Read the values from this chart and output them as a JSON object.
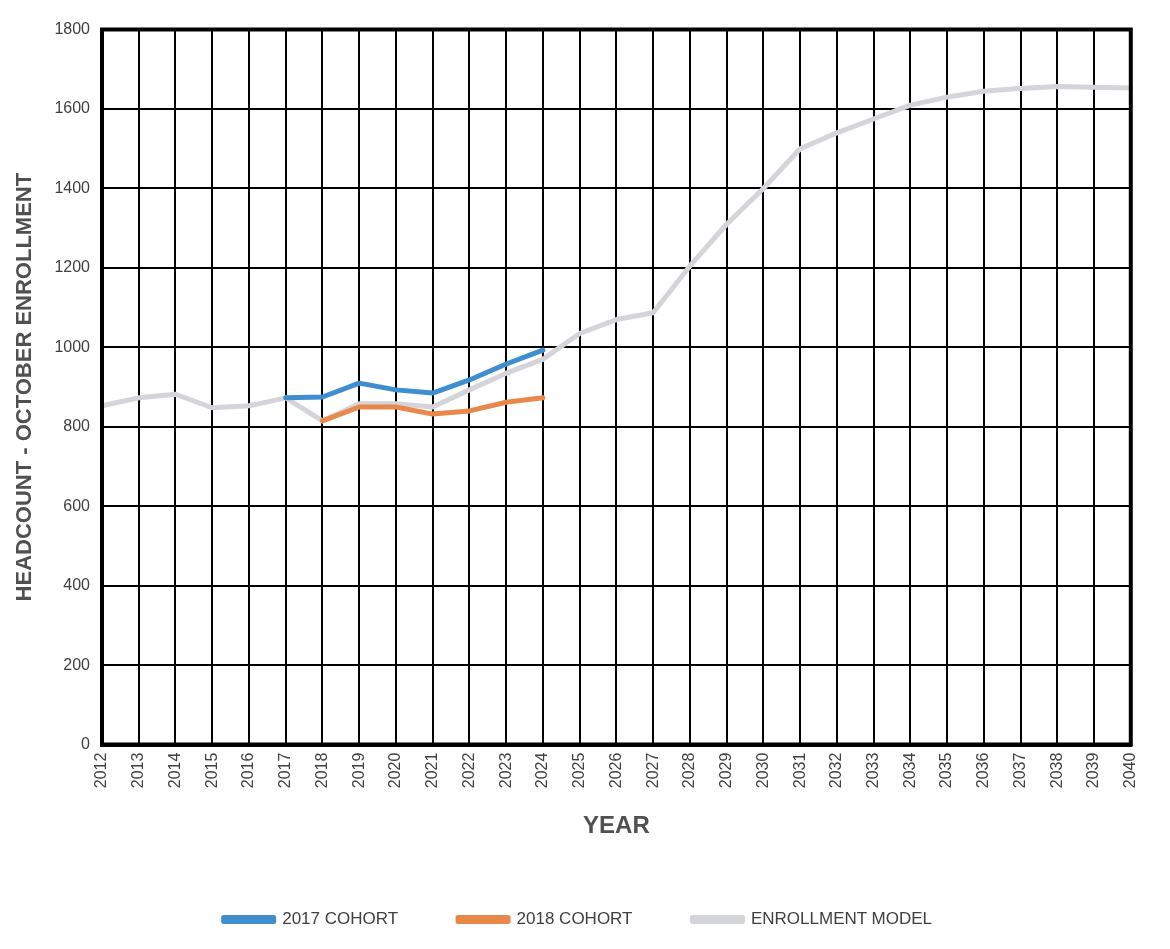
{
  "chart_data": {
    "type": "line",
    "xlabel": "YEAR",
    "ylabel": "HEADCOUNT - OCTOBER ENROLLMENT",
    "categories": [
      "2012",
      "2013",
      "2014",
      "2015",
      "2016",
      "2017",
      "2018",
      "2019",
      "2020",
      "2021",
      "2022",
      "2023",
      "2024",
      "2025",
      "2026",
      "2027",
      "2028",
      "2029",
      "2030",
      "2031",
      "2032",
      "2033",
      "2034",
      "2035",
      "2036",
      "2037",
      "2038",
      "2039",
      "2040"
    ],
    "series": [
      {
        "name": "2017 COHORT",
        "color": "#3f8fd0",
        "values": [
          null,
          null,
          null,
          null,
          null,
          873,
          875,
          910,
          893,
          885,
          918,
          958,
          993,
          null,
          null,
          null,
          null,
          null,
          null,
          null,
          null,
          null,
          null,
          null,
          null,
          null,
          null,
          null,
          null
        ]
      },
      {
        "name": "2018 COHORT",
        "color": "#e8894a",
        "values": [
          null,
          null,
          null,
          null,
          null,
          null,
          815,
          850,
          850,
          832,
          840,
          862,
          873,
          null,
          null,
          null,
          null,
          null,
          null,
          null,
          null,
          null,
          null,
          null,
          null,
          null,
          null,
          null,
          null
        ]
      },
      {
        "name": "ENROLLMENT MODEL",
        "color": "#d3d5da",
        "values": [
          853,
          873,
          882,
          848,
          853,
          873,
          815,
          858,
          858,
          850,
          893,
          935,
          970,
          1035,
          1070,
          1087,
          1205,
          1310,
          1400,
          1500,
          1540,
          1575,
          1610,
          1630,
          1645,
          1652,
          1657,
          1655,
          1653
        ]
      }
    ],
    "ylim": [
      0,
      1800
    ],
    "yticks": [
      0,
      200,
      400,
      600,
      800,
      1000,
      1200,
      1400,
      1600,
      1800
    ],
    "grid": true,
    "legend": "bottom",
    "marker": "none",
    "line_style": "solid"
  }
}
